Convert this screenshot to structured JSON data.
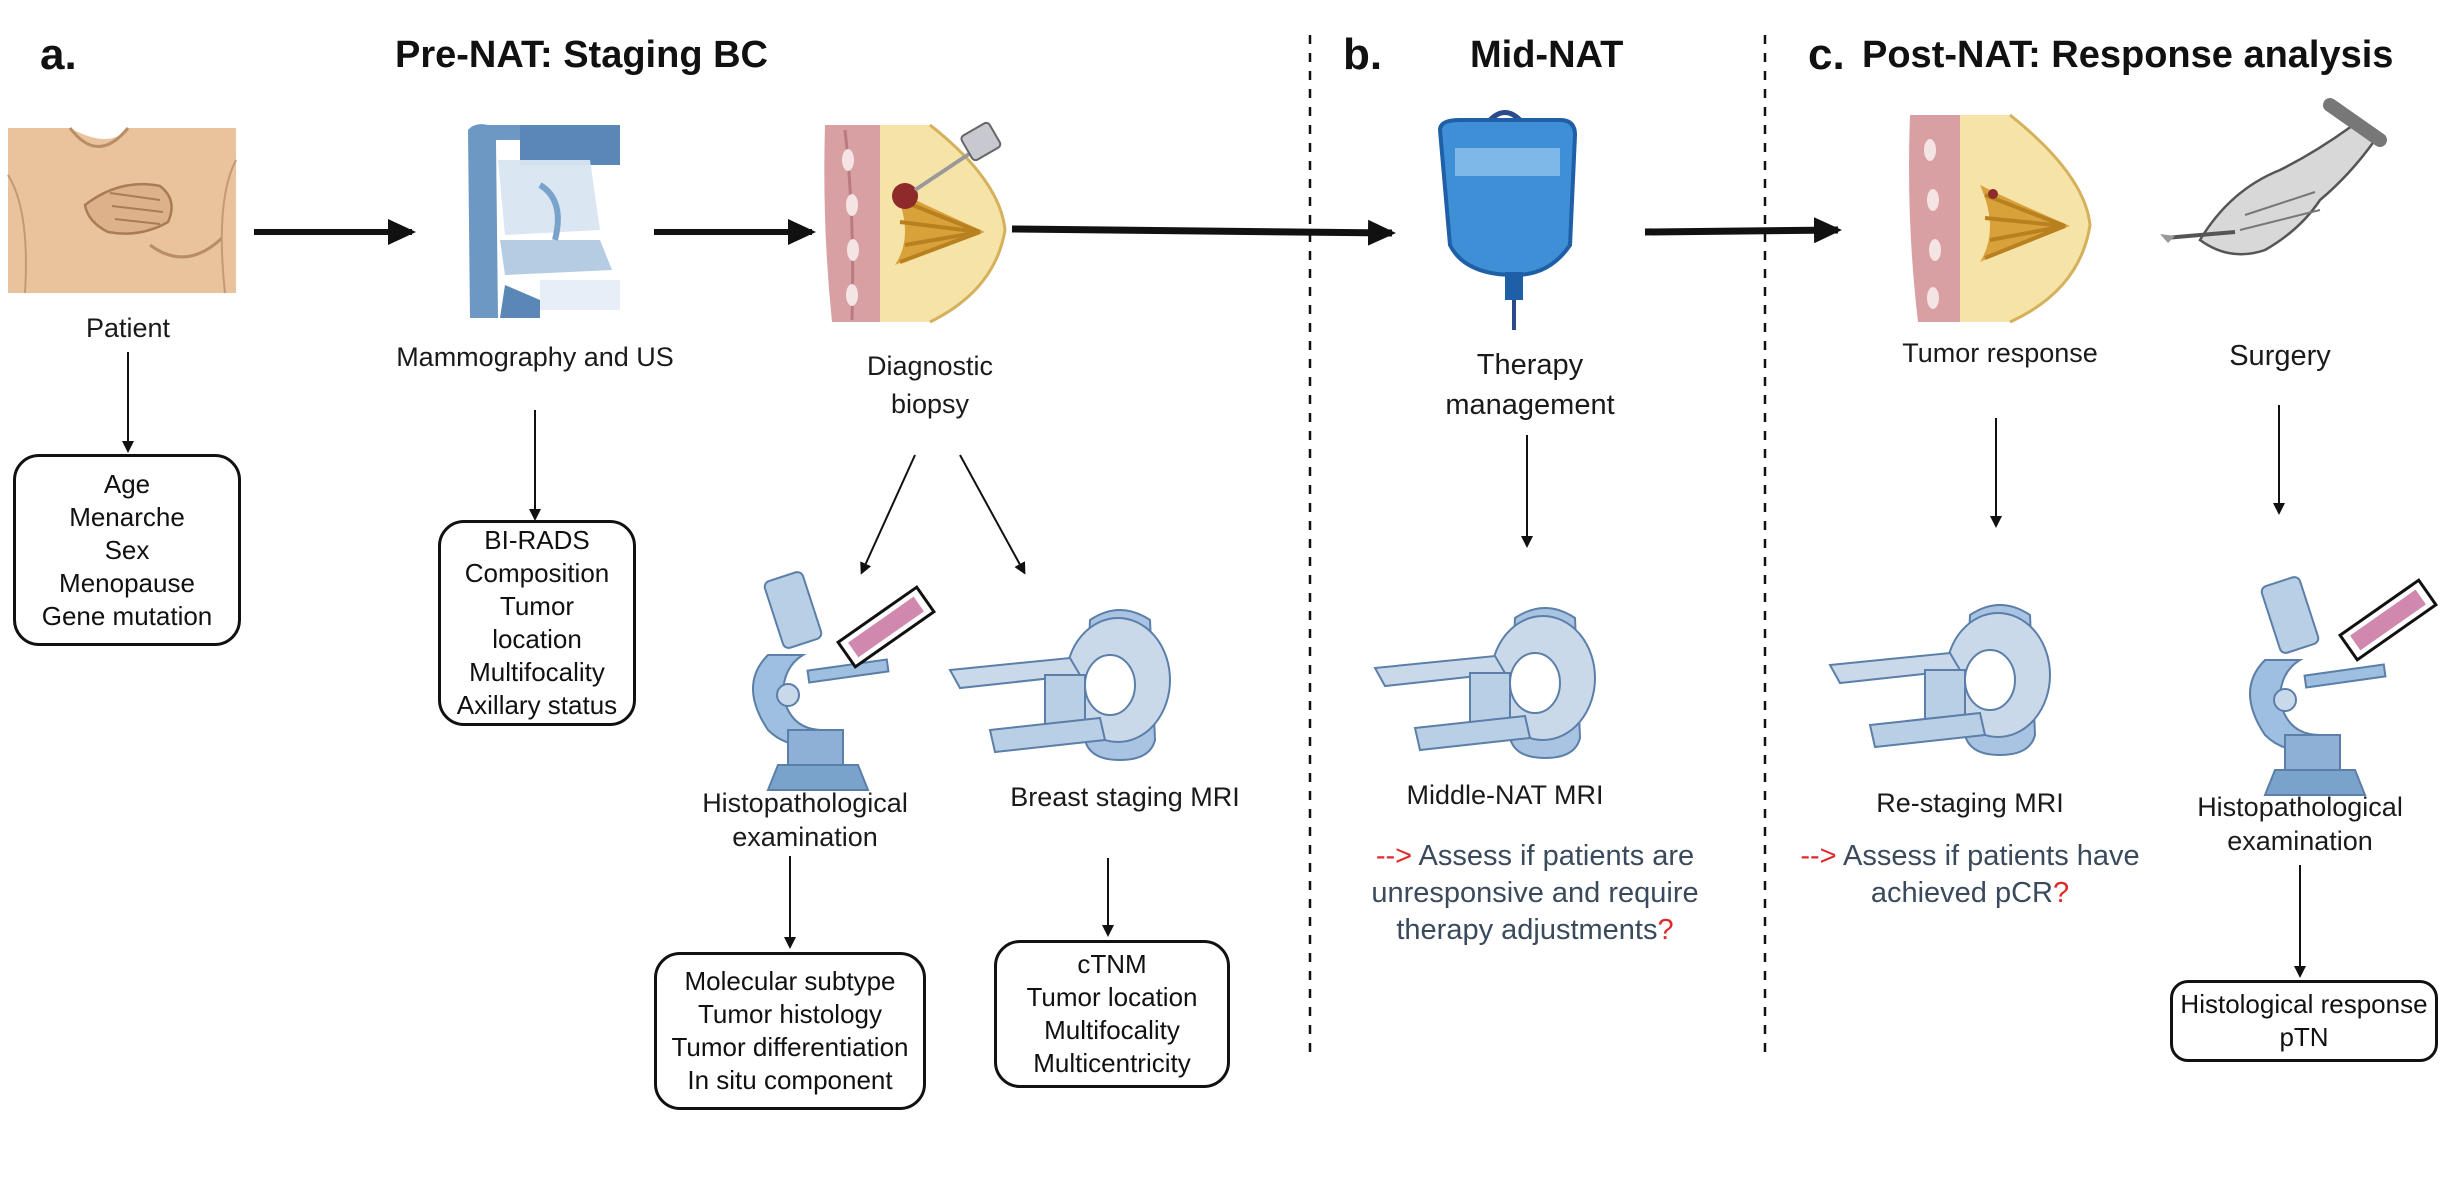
{
  "panels": {
    "a": {
      "letter": "a.",
      "title": "Pre-NAT: Staging BC",
      "patient_label": "Patient",
      "patient_box": [
        "Age",
        "Menarche",
        "Sex",
        "Menopause",
        "Gene mutation"
      ],
      "mammo_label": "Mammography and US",
      "mammo_box": [
        "BI-RADS",
        "Composition",
        "Tumor",
        "location",
        "Multifocality",
        "Axillary status"
      ],
      "biopsy_label": [
        "Diagnostic",
        "biopsy"
      ],
      "histo_label": [
        "Histopathological",
        "examination"
      ],
      "histo_box": [
        "Molecular subtype",
        "Tumor histology",
        "Tumor differentiation",
        "In situ component"
      ],
      "mri_label": "Breast staging MRI",
      "mri_box": [
        "cTNM",
        "Tumor location",
        "Multifocality",
        "Multicentricity"
      ]
    },
    "b": {
      "letter": "b.",
      "title": "Mid-NAT",
      "therapy_label": [
        "Therapy",
        "management"
      ],
      "mri_label": "Middle-NAT MRI",
      "note_arrow": "-->",
      "note_lines": [
        "Assess if patients are",
        "unresponsive and require",
        "therapy adjustments"
      ],
      "note_q": "?"
    },
    "c": {
      "letter": "c.",
      "title": "Post-NAT: Response analysis",
      "tumor_label": "Tumor response",
      "surgery_label": "Surgery",
      "restaging_label": "Re-staging MRI",
      "note_arrow": "-->",
      "note_lines": [
        "Assess if patients have",
        "achieved pCR"
      ],
      "note_q": "?",
      "histo_label": [
        "Histopathological",
        "examination"
      ],
      "histo_box": [
        "Histological response",
        "pTN"
      ]
    }
  },
  "colors": {
    "skin": "#e8c39c",
    "device_blue": "#7aa3cc",
    "device_light": "#c9d9ea",
    "breast_fat": "#f6e3a8",
    "gland": "#d9a13a",
    "tissue_pink": "#d9a0a4",
    "note_text": "#3a4a5c",
    "note_red": "#e02a2a"
  },
  "icons": [
    "patient-illustration",
    "mammography-machine",
    "biopsy-breast",
    "microscope",
    "mri-scanner",
    "iv-bag",
    "scalpel-hand"
  ]
}
